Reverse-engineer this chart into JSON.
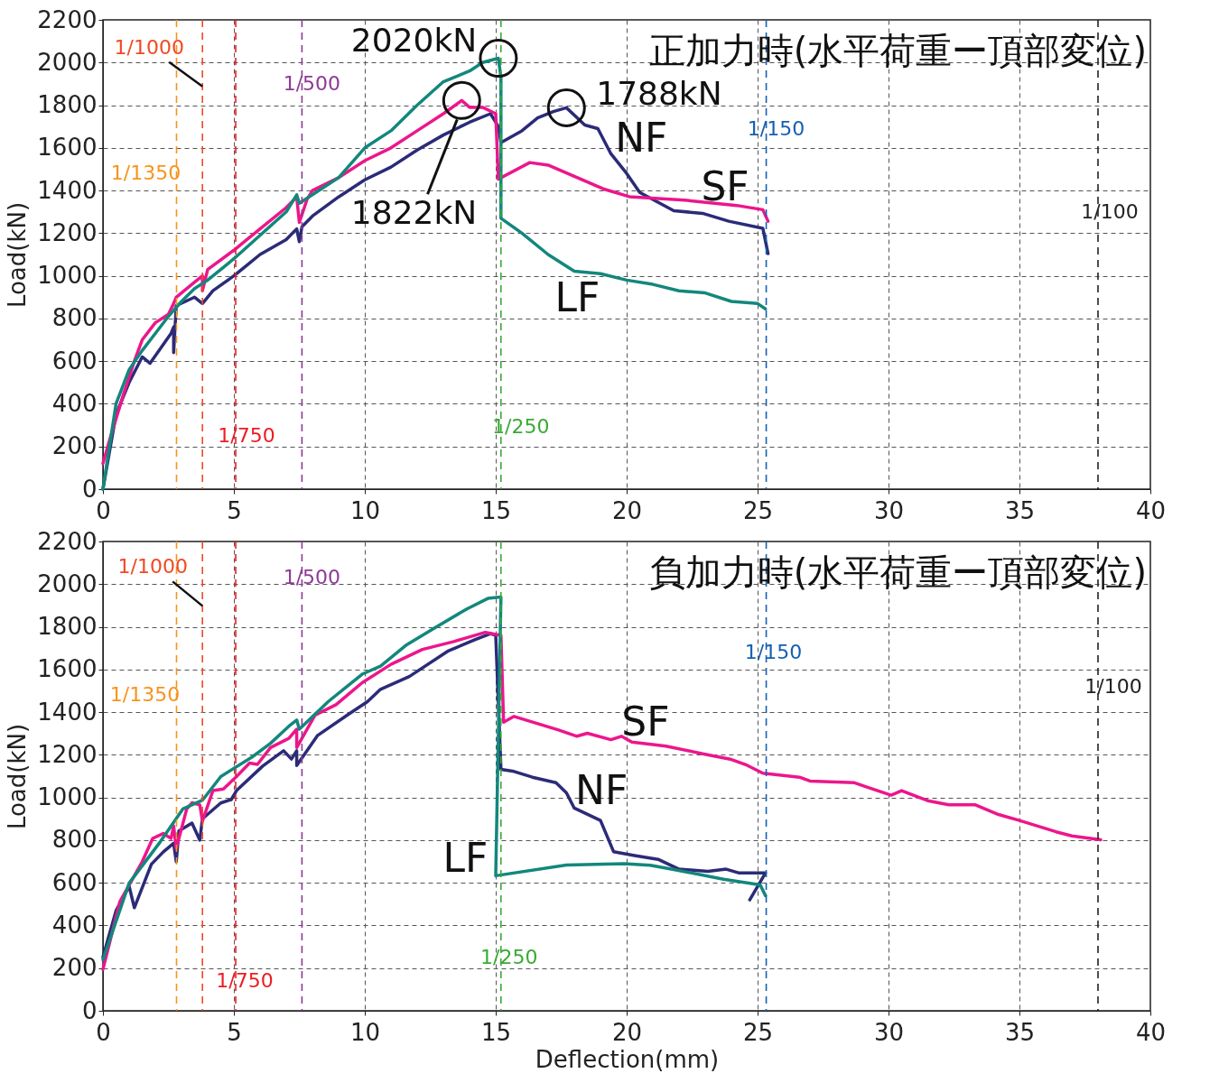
{
  "chart_data": [
    {
      "type": "line",
      "title": "正加力時(水平荷重ー頂部変位)",
      "ylabel": "Load(kN)",
      "xlim": [
        0,
        40
      ],
      "xticks": [
        0,
        5,
        10,
        15,
        20,
        25,
        30,
        35,
        40
      ],
      "ylim": [
        0,
        2200
      ],
      "yticks": [
        0,
        200,
        400,
        600,
        800,
        1000,
        1200,
        1400,
        1600,
        1800,
        2000,
        2200
      ],
      "grid": true,
      "series": [
        {
          "name": "NF",
          "color": "#2b2b78",
          "x": [
            0,
            0.5,
            1,
            1.5,
            1.8,
            2.2,
            2.6,
            2.7,
            2.7,
            2.8,
            3.5,
            3.8,
            4.2,
            5,
            5.5,
            6,
            7,
            7.4,
            7.5,
            7.6,
            8,
            9,
            10,
            11,
            12,
            13,
            14,
            14.8,
            15.1,
            15.2,
            16,
            16.6,
            17.2,
            17.7,
            18.4,
            18.9,
            19.4,
            20,
            20.5,
            21.8,
            22.9,
            23.9,
            25.2,
            25.4
          ],
          "values": [
            0,
            350,
            500,
            620,
            590,
            660,
            730,
            760,
            640,
            860,
            900,
            870,
            930,
            1000,
            1050,
            1100,
            1170,
            1220,
            1160,
            1230,
            1280,
            1370,
            1450,
            1510,
            1590,
            1660,
            1720,
            1760,
            1700,
            1625,
            1680,
            1740,
            1770,
            1788,
            1707,
            1690,
            1572,
            1480,
            1391,
            1305,
            1293,
            1256,
            1223,
            1104
          ]
        },
        {
          "name": "SF",
          "color": "#ec168c",
          "x": [
            0,
            0.3,
            0.8,
            1.2,
            1.5,
            2,
            2.5,
            2.7,
            2.8,
            3.5,
            3.8,
            3.8,
            4,
            5,
            5.5,
            6,
            7,
            7.4,
            7.5,
            7.8,
            8,
            9,
            10,
            11,
            12,
            13,
            13.7,
            14,
            14.5,
            15,
            15.1,
            16.3,
            17,
            18.1,
            19.1,
            20.1,
            22.2,
            24.2,
            25.2,
            25.4
          ],
          "values": [
            120,
            250,
            450,
            600,
            700,
            780,
            820,
            870,
            900,
            970,
            1000,
            930,
            1030,
            1120,
            1170,
            1220,
            1320,
            1370,
            1250,
            1360,
            1400,
            1460,
            1540,
            1600,
            1680,
            1760,
            1822,
            1790,
            1790,
            1760,
            1453,
            1531,
            1519,
            1461,
            1408,
            1371,
            1355,
            1330,
            1310,
            1256
          ]
        },
        {
          "name": "LF",
          "color": "#13877c",
          "x": [
            0,
            0.5,
            1,
            1.5,
            2,
            2.5,
            3,
            3.5,
            4,
            5,
            6,
            7,
            7.4,
            7.5,
            8,
            9,
            10,
            11,
            12,
            13,
            14,
            14.5,
            15.1,
            15.2,
            15.2,
            16,
            17,
            18,
            19,
            20,
            21,
            22,
            23,
            24,
            25,
            25.3
          ],
          "values": [
            0,
            400,
            560,
            650,
            730,
            810,
            880,
            940,
            980,
            1080,
            1190,
            1300,
            1380,
            1340,
            1380,
            1460,
            1600,
            1680,
            1800,
            1910,
            1960,
            2000,
            2020,
            1930,
            1270,
            1200,
            1100,
            1022,
            1010,
            980,
            960,
            930,
            920,
            880,
            870,
            845
          ]
        }
      ],
      "ref_lines": [
        {
          "axis": "x",
          "value": 2.81,
          "color": "#f7941d",
          "line_style": "dashed"
        },
        {
          "axis": "x",
          "value": 3.8,
          "color": "#ef4a23",
          "line_style": "dashed"
        },
        {
          "axis": "x",
          "value": 5.07,
          "color": "#ed1c24",
          "line_style": "dashed"
        },
        {
          "axis": "x",
          "value": 7.6,
          "color": "#8e3a96",
          "line_style": "dashed"
        },
        {
          "axis": "x",
          "value": 15.2,
          "color": "#3aaa35",
          "line_style": "dashed"
        },
        {
          "axis": "x",
          "value": 25.33,
          "color": "#1560b0",
          "line_style": "dashed"
        },
        {
          "axis": "x",
          "value": 38,
          "color": "#222222",
          "line_style": "dashed"
        }
      ],
      "annotations": [
        {
          "text": "2020kN",
          "x": 15.1,
          "y": 2020
        },
        {
          "text": "1822kN",
          "x": 13.7,
          "y": 1822
        },
        {
          "text": "1788kN",
          "x": 17.7,
          "y": 1788
        },
        {
          "text": "1/1350",
          "x": 2.81,
          "y": 1480
        },
        {
          "text": "1/1000",
          "x": 3.8,
          "y": 2070
        },
        {
          "text": "1/750",
          "x": 5.07,
          "y": 250
        },
        {
          "text": "1/500",
          "x": 7.6,
          "y": 1900
        },
        {
          "text": "1/250",
          "x": 15.2,
          "y": 290
        },
        {
          "text": "1/150",
          "x": 25.33,
          "y": 1690
        },
        {
          "text": "1/100",
          "x": 38,
          "y": 1300
        }
      ]
    },
    {
      "type": "line",
      "title": "負加力時(水平荷重ー頂部変位)",
      "xlabel": "Deflection(mm)",
      "ylabel": "Load(kN)",
      "xlim": [
        0,
        40
      ],
      "xticks": [
        0,
        5,
        10,
        15,
        20,
        25,
        30,
        35,
        40
      ],
      "ylim": [
        0,
        2200
      ],
      "yticks": [
        0,
        200,
        400,
        600,
        800,
        1000,
        1200,
        1400,
        1600,
        1800,
        2000,
        2200
      ],
      "grid": true,
      "series": [
        {
          "name": "NF",
          "color": "#2b2b78",
          "x": [
            0,
            0.5,
            1.0,
            1.2,
            1.85,
            2.3,
            2.7,
            2.8,
            2.9,
            3.4,
            3.7,
            3.8,
            4.5,
            4.9,
            5.1,
            6.1,
            6.9,
            7.2,
            7.4,
            7.4,
            8.2,
            9.4,
            10.1,
            10.6,
            11.7,
            13.2,
            14.2,
            14.8,
            15.0,
            15.2,
            15.7,
            16.4,
            17.3,
            17.7,
            18.0,
            19.0,
            19.5,
            20.3,
            21.2,
            22.0,
            23.1,
            23.8,
            24.3,
            25.3,
            24.7
          ],
          "values": [
            252,
            469,
            584,
            483,
            687,
            744,
            785,
            699,
            843,
            880,
            800,
            900,
            974,
            990,
            1032,
            1147,
            1219,
            1180,
            1219,
            1150,
            1291,
            1392,
            1449,
            1507,
            1567,
            1688,
            1739,
            1768,
            1760,
            1132,
            1122,
            1095,
            1069,
            1022,
            950,
            892,
            746,
            728,
            710,
            664,
            654,
            664,
            646,
            646,
            520
          ]
        },
        {
          "name": "SF",
          "color": "#ec168c",
          "x": [
            0,
            0.65,
            1.5,
            1.9,
            2.3,
            2.6,
            2.7,
            2.8,
            3.2,
            3.4,
            3.7,
            3.8,
            4.2,
            4.6,
            5.1,
            5.6,
            5.9,
            6.4,
            7.1,
            7.4,
            7.4,
            8.1,
            8.9,
            9.9,
            11.0,
            12.2,
            13.4,
            14.6,
            15.2,
            15.3,
            15.7,
            17.4,
            18.1,
            18.5,
            19.4,
            19.8,
            20.2,
            21.5,
            22.9,
            24.0,
            24.6,
            25.2,
            26.6,
            27.0,
            28.7,
            29.2,
            30.1,
            30.5,
            31.5,
            32.3,
            33.3,
            34.2,
            35.0,
            36.4,
            37.0,
            38.1
          ],
          "values": [
            194,
            513,
            699,
            808,
            831,
            808,
            866,
            761,
            946,
            975,
            965,
            890,
            1032,
            1040,
            1098,
            1161,
            1155,
            1234,
            1277,
            1320,
            1234,
            1386,
            1435,
            1538,
            1624,
            1694,
            1731,
            1774,
            1760,
            1353,
            1380,
            1316,
            1287,
            1301,
            1271,
            1287,
            1260,
            1241,
            1205,
            1178,
            1151,
            1114,
            1095,
            1077,
            1069,
            1048,
            1011,
            1032,
            985,
            966,
            966,
            920,
            892,
            839,
            820,
            802
          ]
        },
        {
          "name": "LF",
          "color": "#13877c",
          "x": [
            0,
            1.0,
            2.2,
            3.05,
            3.8,
            4.5,
            5.7,
            6.4,
            7.1,
            7.4,
            7.5,
            8.6,
            9.9,
            10.6,
            11.6,
            12.7,
            13.9,
            14.7,
            15.2,
            15.0,
            17.7,
            19.9,
            20.9,
            21.8,
            23.7,
            25.1,
            25.3
          ],
          "values": [
            240,
            598,
            794,
            946,
            987,
            1098,
            1190,
            1254,
            1334,
            1363,
            1320,
            1449,
            1578,
            1616,
            1716,
            1797,
            1884,
            1933,
            1940,
            633,
            683,
            690,
            682,
            662,
            617,
            590,
            540
          ]
        }
      ],
      "ref_lines": [
        {
          "axis": "x",
          "value": 2.81,
          "color": "#f7941d",
          "line_style": "dashed"
        },
        {
          "axis": "x",
          "value": 3.8,
          "color": "#ef4a23",
          "line_style": "dashed"
        },
        {
          "axis": "x",
          "value": 5.07,
          "color": "#ed1c24",
          "line_style": "dashed"
        },
        {
          "axis": "x",
          "value": 7.6,
          "color": "#8e3a96",
          "line_style": "dashed"
        },
        {
          "axis": "x",
          "value": 15.2,
          "color": "#3aaa35",
          "line_style": "dashed"
        },
        {
          "axis": "x",
          "value": 25.33,
          "color": "#1560b0",
          "line_style": "dashed"
        },
        {
          "axis": "x",
          "value": 38,
          "color": "#222222",
          "line_style": "dashed"
        }
      ],
      "annotations": [
        {
          "text": "1/1350",
          "x": 2.81,
          "y": 1480
        },
        {
          "text": "1/1000",
          "x": 3.8,
          "y": 2080
        },
        {
          "text": "1/750",
          "x": 5.07,
          "y": 140
        },
        {
          "text": "1/500",
          "x": 7.6,
          "y": 2030
        },
        {
          "text": "1/250",
          "x": 15.2,
          "y": 250
        },
        {
          "text": "1/150",
          "x": 25.33,
          "y": 1680
        },
        {
          "text": "1/100",
          "x": 38,
          "y": 1520
        }
      ]
    }
  ]
}
